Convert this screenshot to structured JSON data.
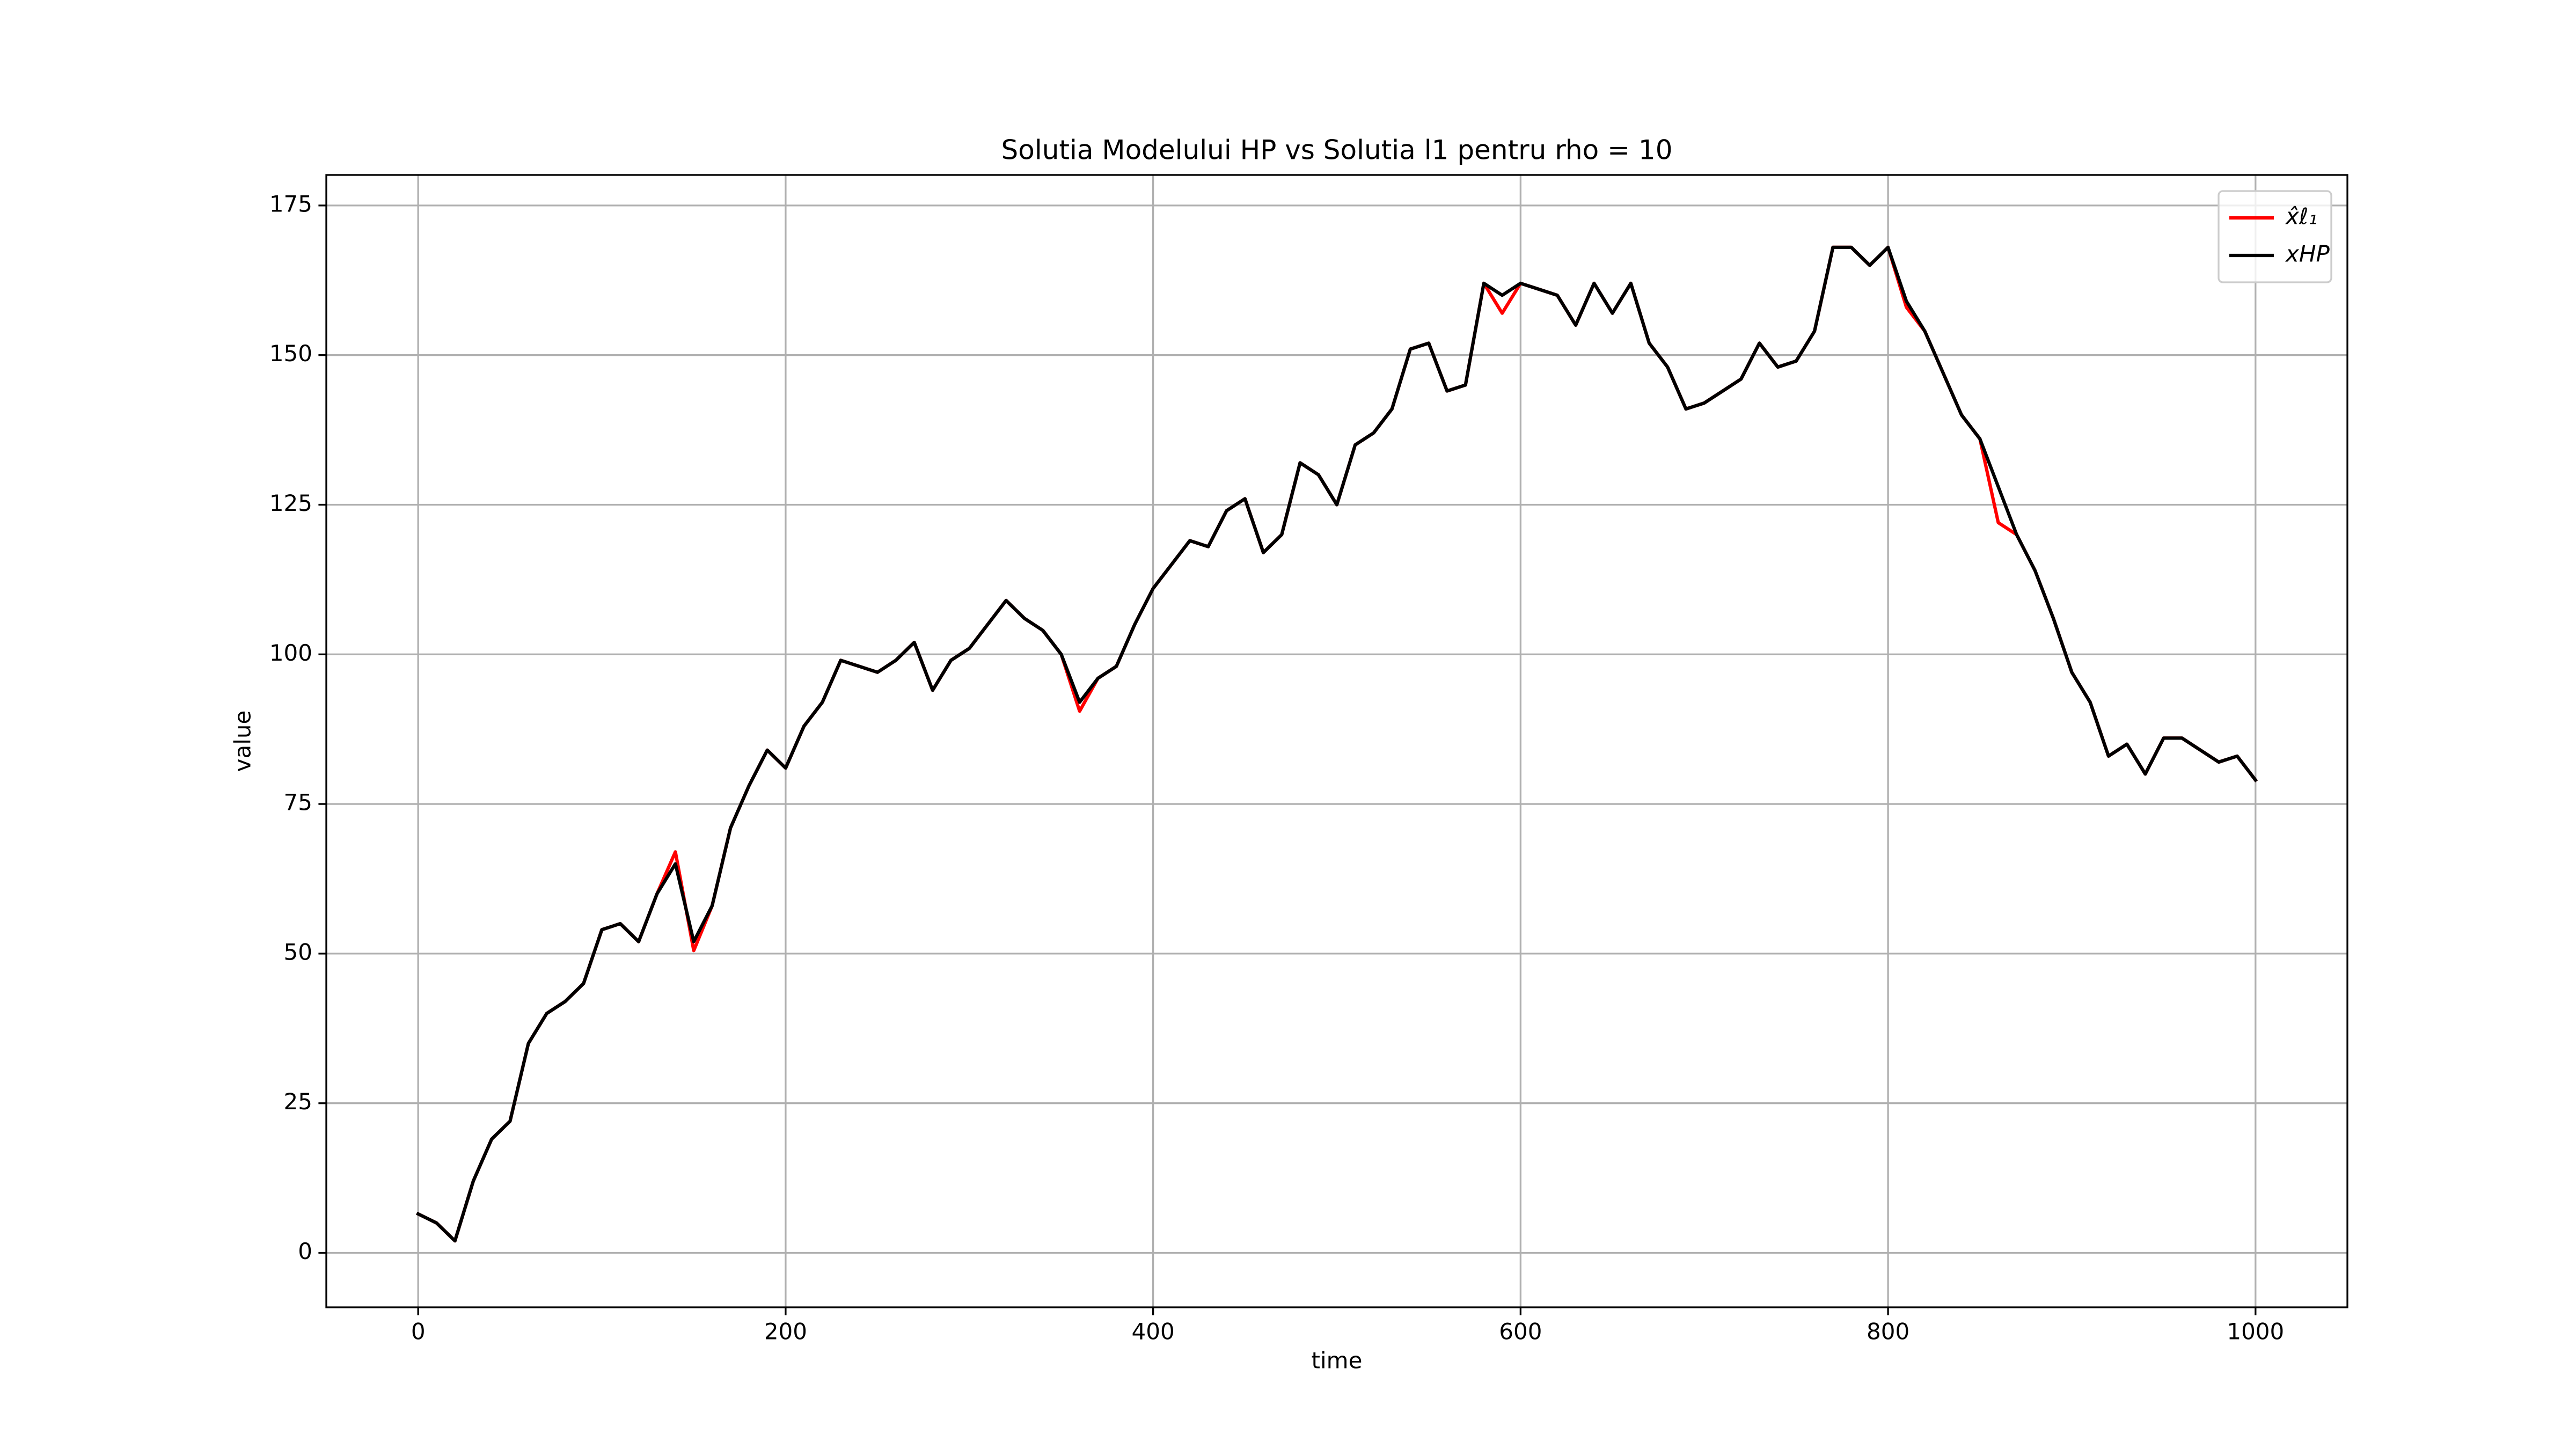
{
  "chart_data": {
    "type": "line",
    "title": "Solutia Modelului HP vs Solutia l1 pentru rho = 10",
    "x_label": "time",
    "y_label": "value",
    "x": [
      0,
      10,
      20,
      30,
      40,
      50,
      60,
      70,
      80,
      90,
      100,
      110,
      120,
      130,
      140,
      150,
      160,
      170,
      180,
      190,
      200,
      210,
      220,
      230,
      240,
      250,
      260,
      270,
      280,
      290,
      300,
      310,
      320,
      330,
      340,
      350,
      360,
      370,
      380,
      390,
      400,
      410,
      420,
      430,
      440,
      450,
      460,
      470,
      480,
      490,
      500,
      510,
      520,
      530,
      540,
      550,
      560,
      570,
      580,
      590,
      600,
      610,
      620,
      630,
      640,
      650,
      660,
      670,
      680,
      690,
      700,
      710,
      720,
      730,
      740,
      750,
      760,
      770,
      780,
      790,
      800,
      810,
      820,
      830,
      840,
      850,
      860,
      870,
      880,
      890,
      900,
      910,
      920,
      930,
      940,
      950,
      960,
      970,
      980,
      990,
      1000
    ],
    "series": [
      {
        "name": "x̂ℓ₁",
        "color": "#ff0000",
        "values": [
          6.5,
          5,
          2,
          12,
          19,
          22,
          35,
          40,
          42,
          45,
          54,
          55,
          52,
          60,
          67,
          50.5,
          58,
          71,
          78,
          84,
          81,
          88,
          92,
          99,
          98,
          97,
          99,
          102,
          94,
          99,
          101,
          105,
          109,
          106,
          104,
          100,
          90.5,
          96,
          98,
          105,
          111,
          115,
          119,
          118,
          124,
          126,
          117,
          120,
          132,
          130,
          125,
          135,
          137,
          141,
          151,
          152,
          144,
          145,
          162,
          157,
          162,
          161,
          160,
          155,
          162,
          157,
          162,
          152,
          148,
          141,
          142,
          144,
          146,
          152,
          148,
          149,
          154,
          168,
          168,
          165,
          168,
          158,
          154,
          147,
          140,
          136,
          122,
          120,
          114,
          106,
          97,
          92,
          83,
          85,
          80,
          86,
          86,
          84,
          82,
          83,
          79
        ]
      },
      {
        "name": "xHP",
        "color": "#000000",
        "values": [
          6.5,
          5,
          2,
          12,
          19,
          22,
          35,
          40,
          42,
          45,
          54,
          55,
          52,
          60,
          65,
          52,
          58,
          71,
          78,
          84,
          81,
          88,
          92,
          99,
          98,
          97,
          99,
          102,
          94,
          99,
          101,
          105,
          109,
          106,
          104,
          100,
          92,
          96,
          98,
          105,
          111,
          115,
          119,
          118,
          124,
          126,
          117,
          120,
          132,
          130,
          125,
          135,
          137,
          141,
          151,
          152,
          144,
          145,
          162,
          160,
          162,
          161,
          160,
          155,
          162,
          157,
          162,
          152,
          148,
          141,
          142,
          144,
          146,
          152,
          148,
          149,
          154,
          168,
          168,
          165,
          168,
          159,
          154,
          147,
          140,
          136,
          128,
          120,
          114,
          106,
          97,
          92,
          83,
          85,
          80,
          86,
          86,
          84,
          82,
          83,
          79
        ]
      }
    ],
    "xlim": [
      -50,
      1050
    ],
    "xticks": [
      0,
      200,
      400,
      600,
      800,
      1000
    ],
    "ylim": [
      -9.1,
      180.1
    ],
    "yticks": [
      0,
      25,
      50,
      75,
      100,
      125,
      150,
      175
    ],
    "grid": true,
    "legend": "upper right"
  }
}
